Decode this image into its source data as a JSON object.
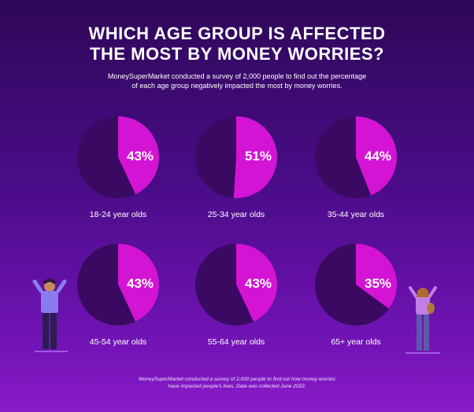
{
  "header": {
    "title_line1": "WHICH AGE GROUP IS AFFECTED",
    "title_line2": "THE MOST BY MONEY WORRIES?",
    "subtitle_line1": "MoneySuperMarket conducted a survey of 2,000 people to find out the percentage",
    "subtitle_line2": "of each age group negatively impacted the most by money worries."
  },
  "footer": {
    "line1": "MoneySuperMarket conducted a survey of 2,000 people to find out how money worries",
    "line2": "have impacted people's lives. Data was collected June 2022."
  },
  "colors": {
    "slice": "#d314d4",
    "remainder": "#3a0a62"
  },
  "chart_data": {
    "type": "pie",
    "categories": [
      "18-24 year olds",
      "25-34 year olds",
      "35-44 year olds",
      "45-54 year olds",
      "55-64 year olds",
      "65+ year olds"
    ],
    "values": [
      43,
      51,
      44,
      43,
      43,
      35
    ],
    "value_labels": [
      "43%",
      "51%",
      "44%",
      "43%",
      "43%",
      "35%"
    ],
    "unit": "%"
  }
}
